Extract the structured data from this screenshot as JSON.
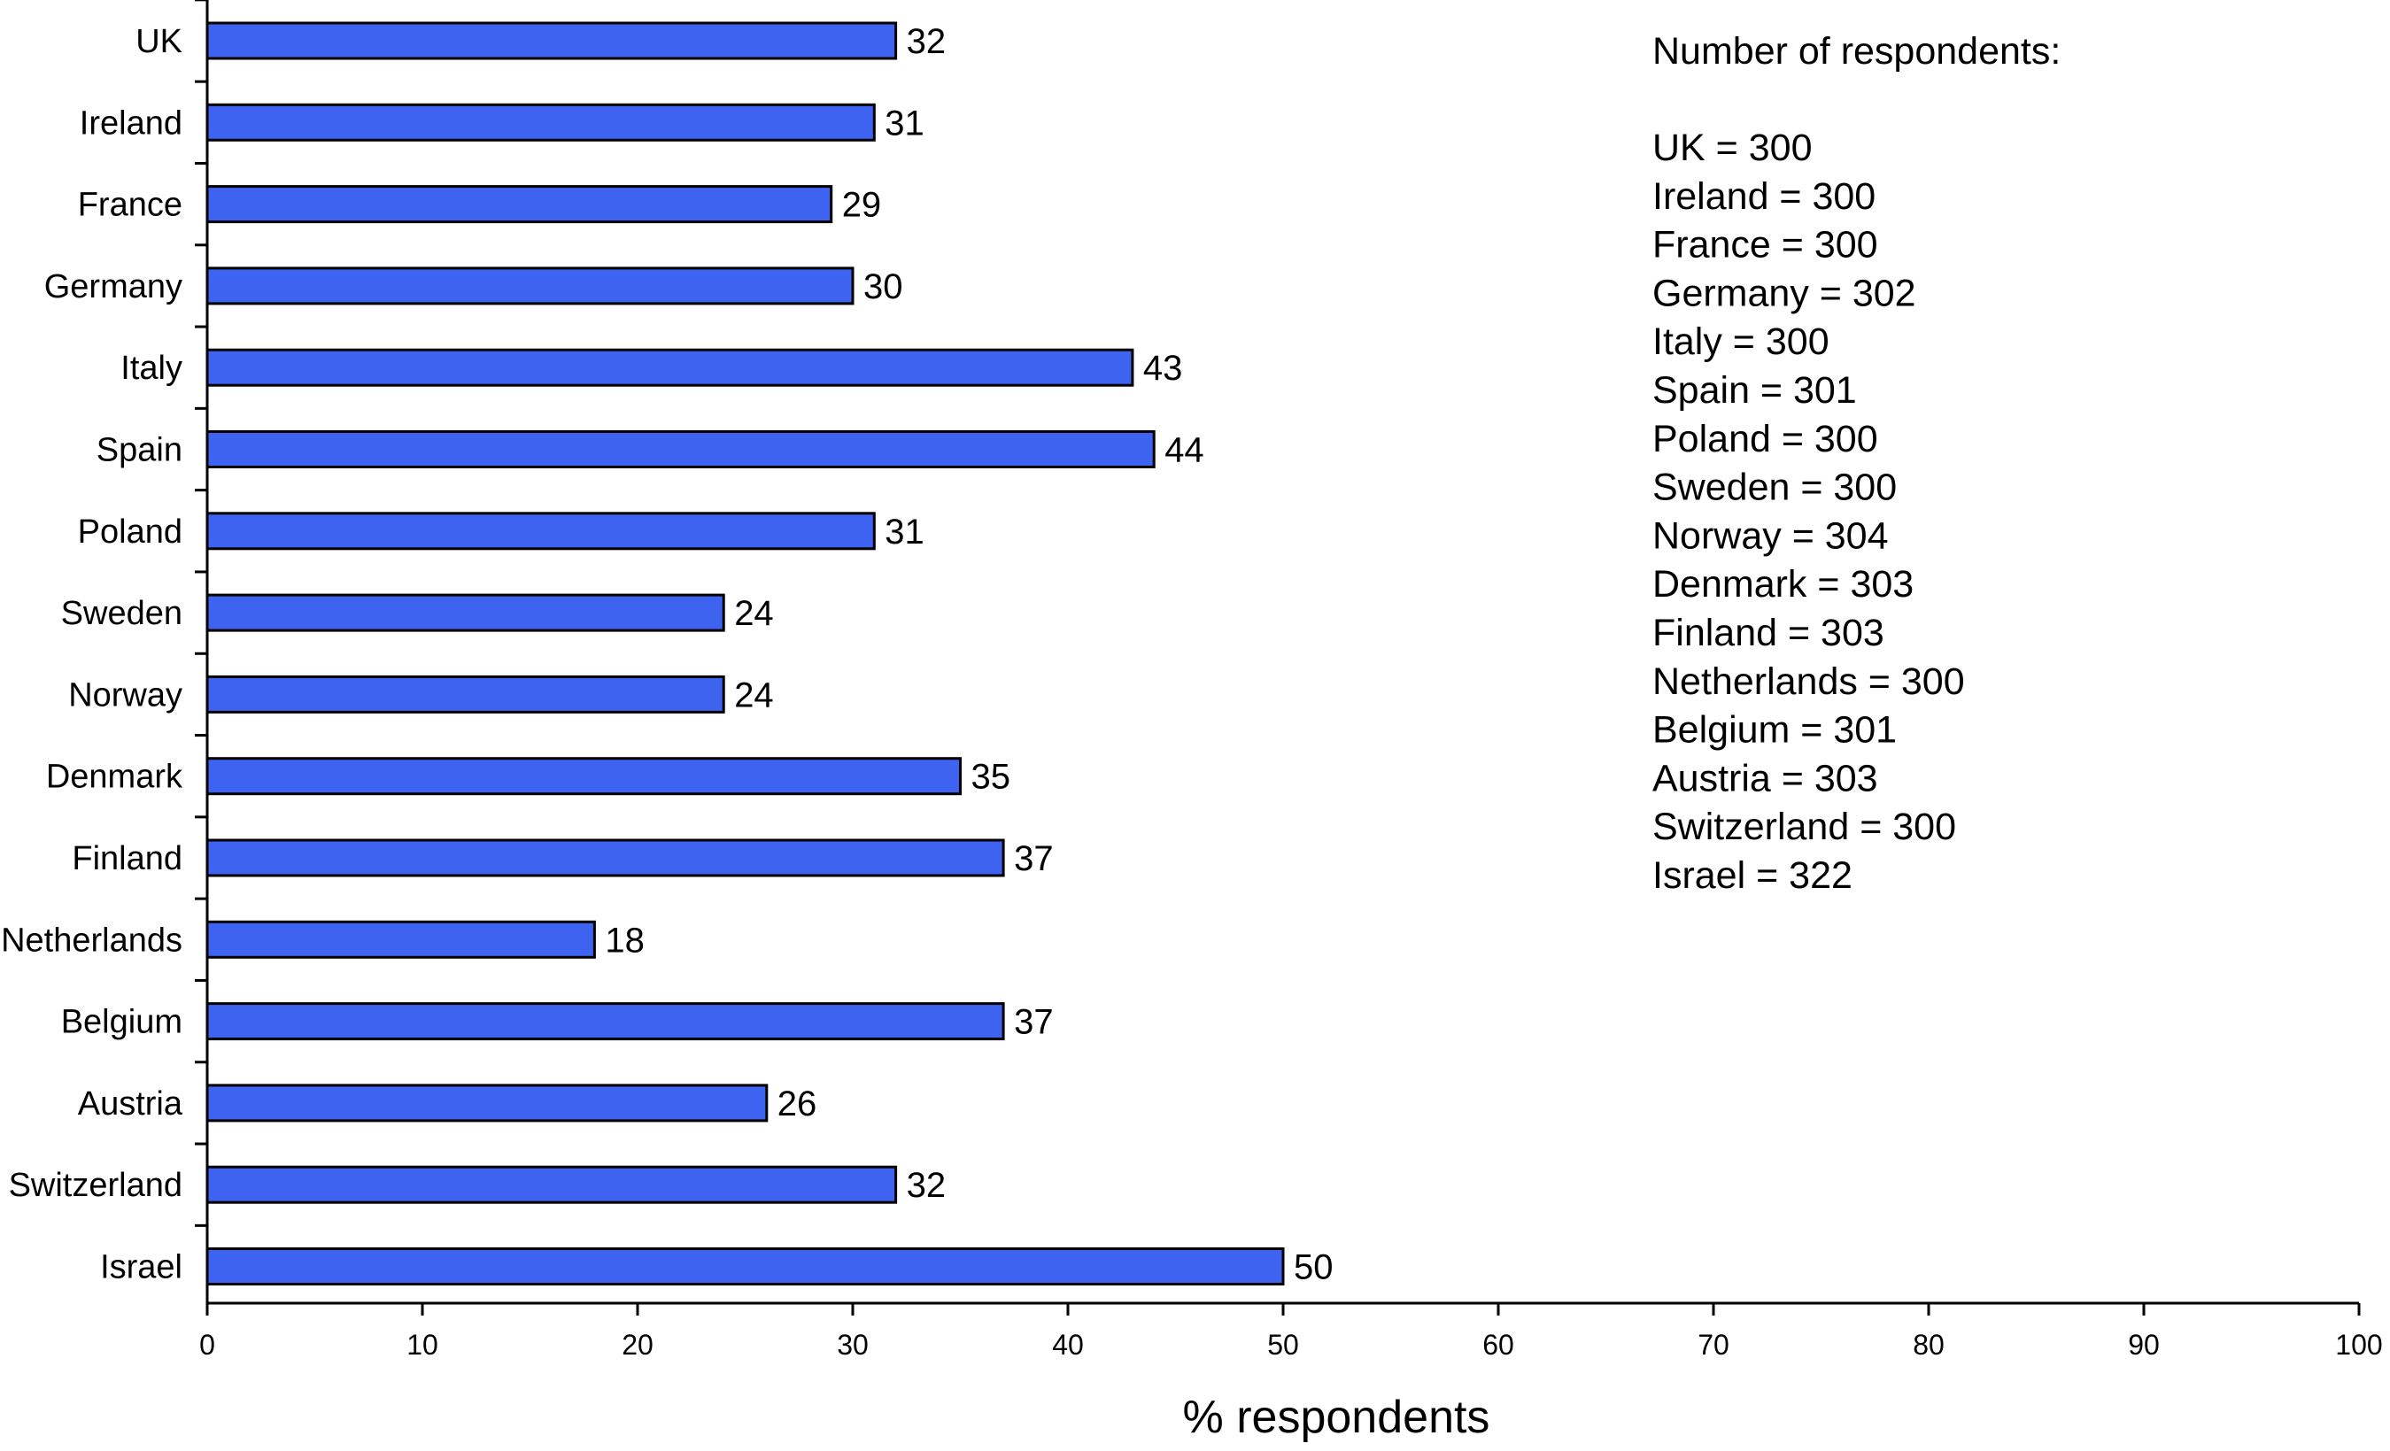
{
  "chart_data": {
    "type": "bar",
    "orientation": "horizontal",
    "categories": [
      "UK",
      "Ireland",
      "France",
      "Germany",
      "Italy",
      "Spain",
      "Poland",
      "Sweden",
      "Norway",
      "Denmark",
      "Finland",
      "Netherlands",
      "Belgium",
      "Austria",
      "Switzerland",
      "Israel"
    ],
    "values": [
      32,
      31,
      29,
      30,
      43,
      44,
      31,
      24,
      24,
      35,
      37,
      18,
      37,
      26,
      32,
      50
    ],
    "value_labels": [
      "32",
      "31",
      "29",
      "30",
      "43",
      "44",
      "31",
      "24",
      "24",
      "35",
      "37",
      "18",
      "37",
      "26",
      "32",
      "50"
    ],
    "title": "",
    "xlabel": "% respondents",
    "ylabel": "",
    "xlim": [
      0,
      100
    ],
    "x_ticks": [
      "0",
      "10",
      "20",
      "30",
      "40",
      "50",
      "60",
      "70",
      "80",
      "90",
      "100"
    ],
    "grid": false,
    "legend": "none",
    "bar_color": "#3d63f0",
    "bar_edge_color": "#000000",
    "annotations": {
      "heading": "Number of respondents:",
      "lines": [
        "UK = 300",
        "Ireland = 300",
        "France = 300",
        "Germany = 302",
        "Italy = 300",
        "Spain = 301",
        "Poland = 300",
        "Sweden = 300",
        "Norway = 304",
        "Denmark = 303",
        "Finland = 303",
        "Netherlands = 300",
        "Belgium = 301",
        "Austria = 303",
        "Switzerland = 300",
        "Israel = 322"
      ]
    }
  }
}
